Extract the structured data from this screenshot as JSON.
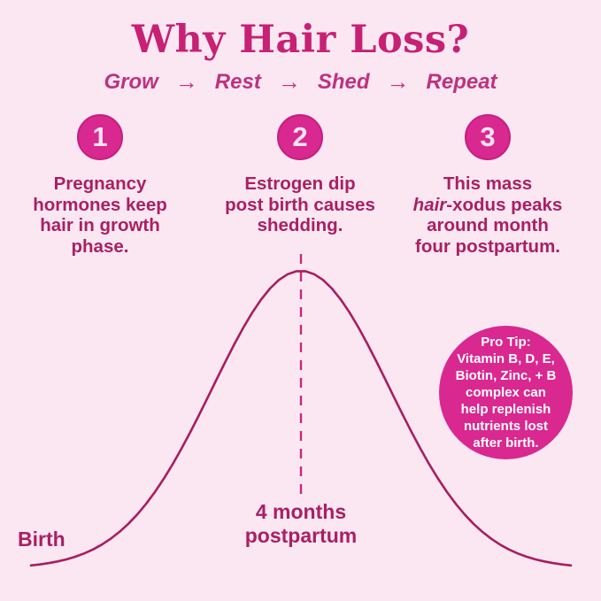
{
  "colors": {
    "background": "#FBE7F2",
    "title": "#C62174",
    "subtitle": "#BC3380",
    "body_text": "#A92063",
    "circle_fill": "#D9288F",
    "circle_edge": "#C51F81",
    "circle_number": "#FBE4F1",
    "curve": "#A81E5F",
    "dashed_line": "#C02C7C",
    "pro_tip_text": "#FFFFFF"
  },
  "title": "Why Hair Loss?",
  "cycle": {
    "steps": [
      "Grow",
      "Rest",
      "Shed",
      "Repeat"
    ],
    "arrow": "→"
  },
  "steps": [
    {
      "number": "1",
      "lines": [
        [
          {
            "text": "Pregnancy"
          }
        ],
        [
          {
            "text": "hormones keep"
          }
        ],
        [
          {
            "text": "hair in growth"
          }
        ],
        [
          {
            "text": "phase."
          }
        ]
      ]
    },
    {
      "number": "2",
      "lines": [
        [
          {
            "text": "Estrogen dip"
          }
        ],
        [
          {
            "text": "post birth causes"
          }
        ],
        [
          {
            "text": "shedding."
          }
        ]
      ]
    },
    {
      "number": "3",
      "lines": [
        [
          {
            "text": "This mass"
          }
        ],
        [
          {
            "text": "hair",
            "em": true
          },
          {
            "text": "-xodus peaks"
          }
        ],
        [
          {
            "text": "around month"
          }
        ],
        [
          {
            "text": "four postpartum."
          }
        ]
      ]
    }
  ],
  "chart_data": {
    "type": "line",
    "description": "Bell curve of postpartum hair shedding over time: starts low at birth, peaks around 4 months postpartum, then declines",
    "x_annotations": [
      "Birth",
      "4 months postpartum"
    ],
    "start_label": "Birth",
    "peak_label": "4 months postpartum",
    "grid": "off",
    "legend": "none"
  },
  "pro_tip": {
    "heading": "Pro Tip:",
    "lines": [
      "Vitamin B, D, E,",
      "Biotin, Zinc, + B",
      "complex can",
      "help replenish",
      "nutrients lost",
      "after birth."
    ]
  }
}
